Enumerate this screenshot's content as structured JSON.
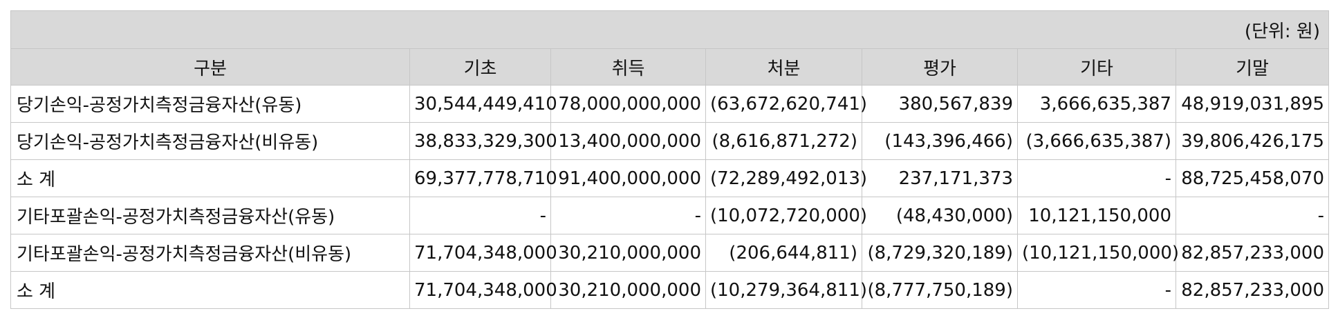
{
  "unit": "(단위: 원)",
  "headers": [
    "구분",
    "기초",
    "취득",
    "처분",
    "평가",
    "기타",
    "기말"
  ],
  "rows": [
    [
      "당기손익-공정가치측정금융자산(유동)",
      "30,544,449,410",
      "78,000,000,000",
      "(63,672,620,741)",
      "380,567,839",
      "3,666,635,387",
      "48,919,031,895"
    ],
    [
      "당기손익-공정가치측정금융자산(비유동)",
      "38,833,329,300",
      "13,400,000,000",
      "(8,616,871,272)",
      "(143,396,466)",
      "(3,666,635,387)",
      "39,806,426,175"
    ],
    [
      "소  계",
      "69,377,778,710",
      "91,400,000,000",
      "(72,289,492,013)",
      "237,171,373",
      "-",
      "88,725,458,070"
    ],
    [
      "기타포괄손익-공정가치측정금융자산(유동)",
      "-",
      "-",
      "(10,072,720,000)",
      "(48,430,000)",
      "10,121,150,000",
      "-"
    ],
    [
      "기타포괄손익-공정가치측정금융자산(비유동)",
      "71,704,348,000",
      "30,210,000,000",
      "(206,644,811)",
      "(8,729,320,189)",
      "(10,121,150,000)",
      "82,857,233,000"
    ],
    [
      "소  계",
      "71,704,348,000",
      "30,210,000,000",
      "(10,279,364,811)",
      "(8,777,750,189)",
      "-",
      "82,857,233,000"
    ]
  ]
}
